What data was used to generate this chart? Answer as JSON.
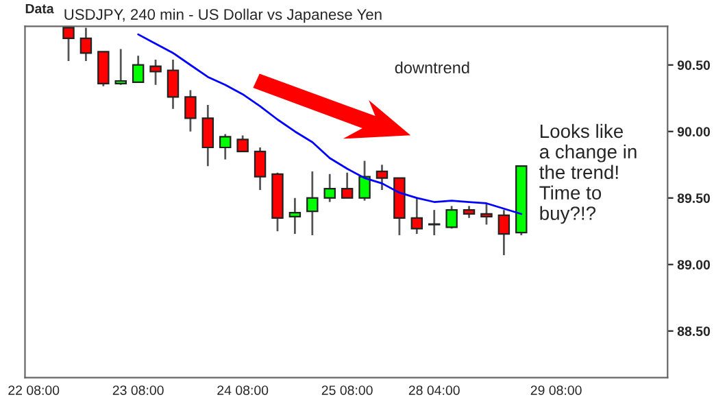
{
  "chart_data": {
    "type": "candlestick",
    "title": "USDJPY, 240 min - US Dollar vs Japanese Yen",
    "categories": [
      "22 08:00",
      null,
      null,
      null,
      null,
      null,
      "23 08:00",
      null,
      null,
      null,
      null,
      null,
      "24 08:00",
      null,
      null,
      null,
      null,
      null,
      "25 08:00",
      null,
      null,
      null,
      null,
      "28 04:00",
      null,
      null,
      null,
      null,
      null,
      null,
      "29 08:00",
      null,
      null,
      null,
      null,
      null,
      null
    ],
    "ohlc": [
      null,
      null,
      [
        90.78,
        90.78,
        90.53,
        90.7
      ],
      [
        90.7,
        90.78,
        90.53,
        90.59
      ],
      [
        90.6,
        90.6,
        90.34,
        90.36
      ],
      [
        90.36,
        90.62,
        90.35,
        90.38
      ],
      [
        90.37,
        90.57,
        90.37,
        90.5
      ],
      [
        90.49,
        90.54,
        90.35,
        90.45
      ],
      [
        90.46,
        90.54,
        90.17,
        90.26
      ],
      [
        90.26,
        90.31,
        90.0,
        90.1
      ],
      [
        90.1,
        90.2,
        89.74,
        89.88
      ],
      [
        89.88,
        89.98,
        89.79,
        89.96
      ],
      [
        89.94,
        89.97,
        89.85,
        89.85
      ],
      [
        89.85,
        89.88,
        89.56,
        89.66
      ],
      [
        89.68,
        89.69,
        89.25,
        89.35
      ],
      [
        89.36,
        89.5,
        89.23,
        89.39
      ],
      [
        89.4,
        89.7,
        89.22,
        89.5
      ],
      [
        89.5,
        89.68,
        89.47,
        89.57
      ],
      [
        89.57,
        89.69,
        89.5,
        89.5
      ],
      [
        89.5,
        89.78,
        89.48,
        89.66
      ],
      [
        89.7,
        89.75,
        89.56,
        89.65
      ],
      [
        89.65,
        89.65,
        89.22,
        89.35
      ],
      [
        89.35,
        89.5,
        89.23,
        89.27
      ],
      [
        89.3,
        89.41,
        89.22,
        89.3
      ],
      [
        89.28,
        89.44,
        89.27,
        89.41
      ],
      [
        89.41,
        89.44,
        89.35,
        89.38
      ],
      [
        89.38,
        89.46,
        89.3,
        89.36
      ],
      [
        89.37,
        89.41,
        89.07,
        89.23
      ],
      [
        89.24,
        89.74,
        89.22,
        89.74
      ],
      null,
      null,
      null,
      null,
      null,
      null,
      null,
      null
    ],
    "colors": [
      null,
      null,
      "#ff0000",
      "#ff0000",
      "#ff0000",
      "#00ff00",
      "#00ff00",
      "#ff0000",
      "#ff0000",
      "#ff0000",
      "#ff0000",
      "#00ff00",
      "#ff0000",
      "#ff0000",
      "#ff0000",
      "#00ff00",
      "#00ff00",
      "#00ff00",
      "#ff0000",
      "#00ff00",
      "#ff0000",
      "#ff0000",
      "#ff0000",
      "#ff0000",
      "#00ff00",
      "#ff0000",
      "#ff0000",
      "#ff0000",
      "#00ff00",
      null,
      null,
      null,
      null,
      null,
      null,
      null,
      null
    ],
    "series": [
      {
        "type": "line",
        "color": "#0000ff",
        "values": [
          null,
          null,
          null,
          null,
          null,
          null,
          90.73,
          90.66,
          90.59,
          90.5,
          90.41,
          90.35,
          90.28,
          90.19,
          90.09,
          90.0,
          89.92,
          89.8,
          89.72,
          89.65,
          89.61,
          89.54,
          89.5,
          89.47,
          89.48,
          89.47,
          89.46,
          89.42,
          89.38,
          null,
          null,
          null,
          null,
          null,
          null,
          null,
          null
        ]
      }
    ],
    "ylim": [
      88.15,
      90.79
    ],
    "yticks": [
      {
        "value": 88.5,
        "label": "88.50"
      },
      {
        "value": 89.0,
        "label": "89.00"
      },
      {
        "value": 89.5,
        "label": "89.50"
      },
      {
        "value": 90.0,
        "label": "90.00"
      },
      {
        "value": 90.5,
        "label": "90.50"
      }
    ],
    "grid": false,
    "annotations": [
      "Data",
      "downtrend",
      "Looks like\na change in\nthe trend!\nTime to\nbuy?!?"
    ]
  }
}
